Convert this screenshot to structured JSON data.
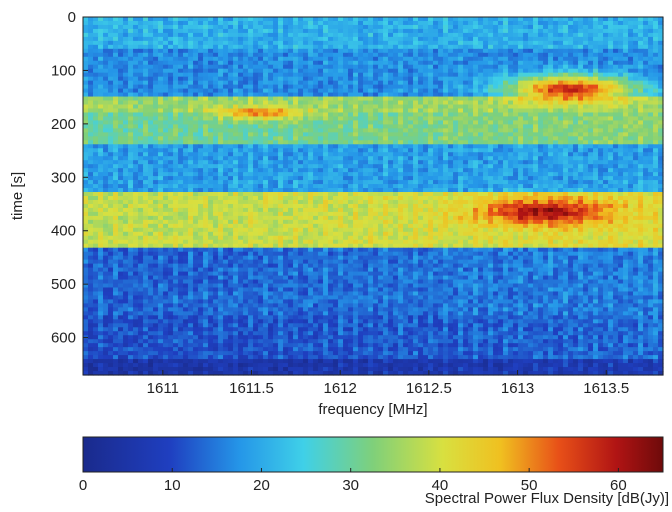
{
  "chart_data": {
    "type": "heatmap",
    "title": "",
    "xlabel": "frequency [MHz]",
    "ylabel": "time [s]",
    "xlim": [
      1610.55,
      1613.82
    ],
    "ylim": [
      0,
      670
    ],
    "y_inverted": true,
    "x_ticks": [
      1611,
      1611.5,
      1612,
      1612.5,
      1613,
      1613.5
    ],
    "x_tick_labels": [
      "1611",
      "1611.5",
      "1612",
      "1612.5",
      "1613",
      "1613.5"
    ],
    "y_ticks": [
      0,
      100,
      200,
      300,
      400,
      500,
      600
    ],
    "y_tick_labels": [
      "0",
      "100",
      "200",
      "300",
      "400",
      "500",
      "600"
    ],
    "grid": false,
    "colormap": "jet",
    "colorbar": {
      "label": "Spectral Power Flux Density [dB(Jy)]",
      "range": [
        0,
        65
      ],
      "ticks": [
        0,
        10,
        20,
        30,
        40,
        50,
        60
      ],
      "tick_labels": [
        "0",
        "10",
        "20",
        "30",
        "40",
        "50",
        "60"
      ]
    },
    "colors": {
      "low": "#1a2a8c",
      "mid_low": "#1f5fd0",
      "mid": "#7fd07a",
      "mid_high": "#e8e838",
      "high": "#e84818",
      "max": "#6e0a0a"
    },
    "bands": [
      {
        "t_start": 0,
        "t_end": 60,
        "level": 20
      },
      {
        "t_start": 60,
        "t_end": 150,
        "level": 16
      },
      {
        "t_start": 150,
        "t_end": 175,
        "level": 34
      },
      {
        "t_start": 175,
        "t_end": 240,
        "level": 29
      },
      {
        "t_start": 240,
        "t_end": 330,
        "level": 18
      },
      {
        "t_start": 330,
        "t_end": 430,
        "level": 37
      },
      {
        "t_start": 430,
        "t_end": 560,
        "level": 12
      },
      {
        "t_start": 560,
        "t_end": 640,
        "level": 10
      },
      {
        "t_start": 640,
        "t_end": 670,
        "level": 4
      }
    ],
    "hotspots": [
      {
        "freq": 1613.3,
        "time": 135,
        "freq_width": 0.35,
        "time_width": 25,
        "peak": 58
      },
      {
        "freq": 1611.55,
        "time": 180,
        "freq_width": 0.25,
        "time_width": 12,
        "peak": 51
      },
      {
        "freq": 1613.15,
        "time": 365,
        "freq_width": 0.35,
        "time_width": 25,
        "peak": 60
      }
    ]
  }
}
